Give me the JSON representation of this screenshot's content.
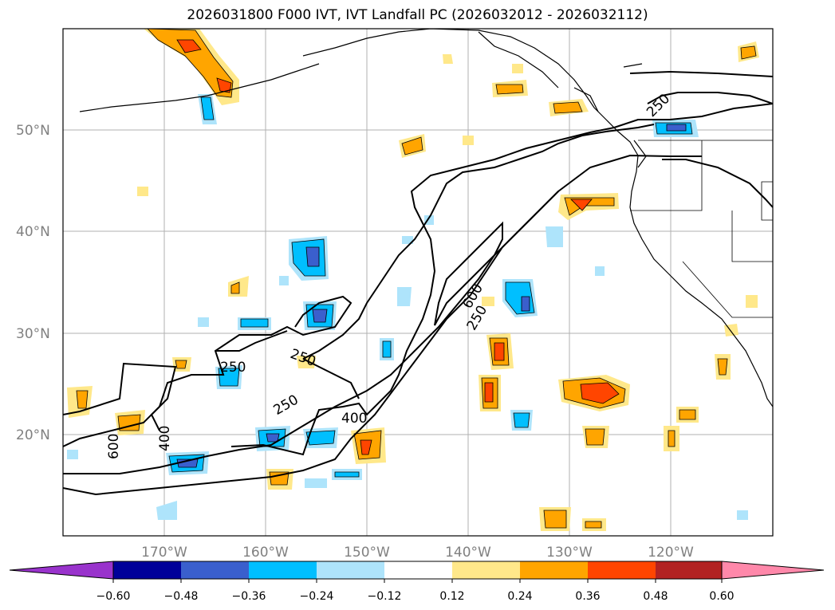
{
  "title": "2026031800 F000 IVT, IVT Landfall PC (2026032012 - 2026032112)",
  "lat_labels": [
    "50°N",
    "40°N",
    "30°N",
    "20°N"
  ],
  "lon_labels": [
    "170°W",
    "160°W",
    "150°W",
    "140°W",
    "130°W",
    "120°W"
  ],
  "contour_labels": [
    "250",
    "600",
    "250",
    "250",
    "250",
    "400",
    "250",
    "400",
    "600"
  ],
  "colorbar": {
    "ticks": [
      "−0.60",
      "−0.48",
      "−0.36",
      "−0.24",
      "−0.12",
      "0.12",
      "0.24",
      "0.36",
      "0.48",
      "0.60"
    ],
    "colors": [
      "#9933cc",
      "#000099",
      "#3a5fcd",
      "#00bfff",
      "#aee4fb",
      "#ffffff",
      "#ffe88a",
      "#ffa500",
      "#ff4500",
      "#b22222",
      "#ff88aa"
    ]
  },
  "chart_data": {
    "type": "map",
    "projection": "cylindrical",
    "extent_lon": [
      -180,
      -110
    ],
    "extent_lat": [
      10,
      60
    ],
    "filled_variable": "IVT Landfall PC",
    "contour_variable": "IVT",
    "contour_levels": [
      250,
      400,
      600
    ],
    "colorbar_levels": [
      -0.6,
      -0.48,
      -0.36,
      -0.24,
      -0.12,
      0.12,
      0.24,
      0.36,
      0.48,
      0.6
    ],
    "gridlines_lon": [
      -170,
      -160,
      -150,
      -140,
      -130,
      -120
    ],
    "gridlines_lat": [
      20,
      30,
      40,
      50
    ]
  }
}
